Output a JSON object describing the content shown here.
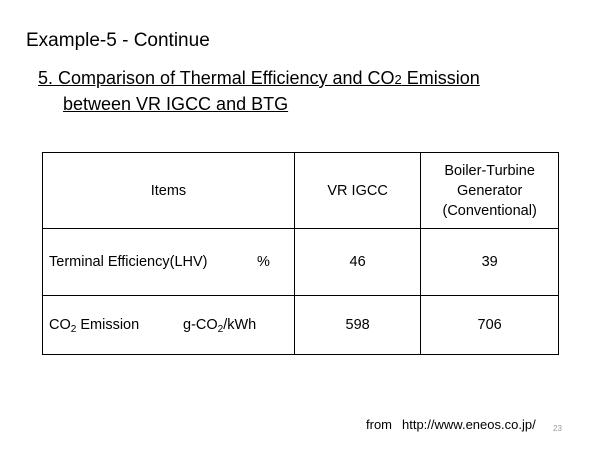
{
  "slide": {
    "title": "Example-5 - Continue",
    "heading_line1_pre": "5. Comparison of Thermal Efficiency and CO",
    "heading_line1_sub": "2",
    "heading_line1_post": " Emission",
    "heading_line2": "between VR IGCC and BTG",
    "page_number": "23"
  },
  "table": {
    "header": {
      "items": "Items",
      "vr_igcc": "VR IGCC",
      "btg_line1": "Boiler-Turbine",
      "btg_line2": "Generator",
      "btg_line3": "(Conventional)"
    },
    "row_efficiency": {
      "label": "Terminal Efficiency(LHV)",
      "unit": "%",
      "vr_igcc": "46",
      "btg": "39"
    },
    "row_co2": {
      "label_pre": "CO",
      "label_sub": "2",
      "label_post": " Emission",
      "unit_pre": "g-CO",
      "unit_sub": "2",
      "unit_post": "/kWh",
      "vr_igcc": "598",
      "btg": "706"
    }
  },
  "source": {
    "prefix": "from",
    "url": "http://www.eneos.co.jp/"
  }
}
